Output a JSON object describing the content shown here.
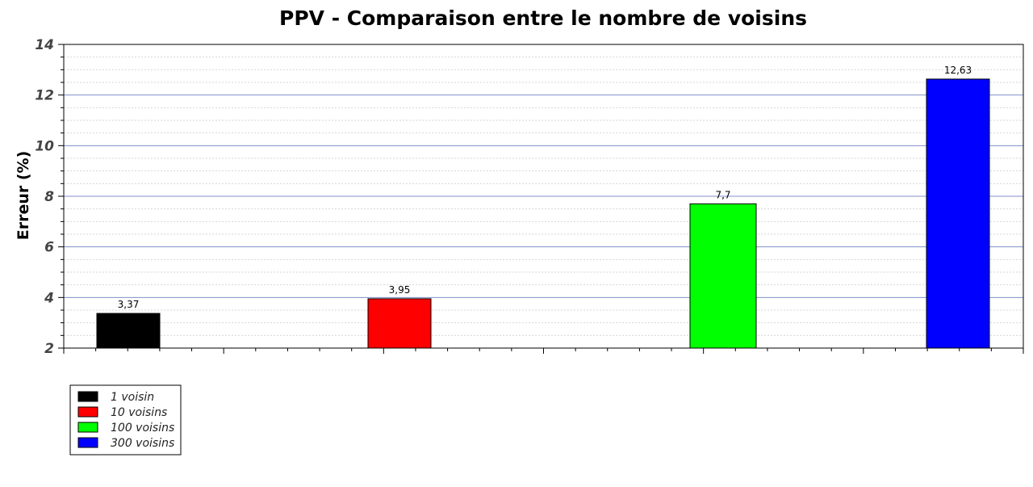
{
  "chart_data": {
    "type": "bar",
    "title": "PPV - Comparaison entre le nombre de voisins",
    "xlabel": "",
    "ylabel": "Erreur (%)",
    "ylim": [
      2,
      14
    ],
    "yticks": [
      "2",
      "4",
      "6",
      "8",
      "10",
      "12",
      "14"
    ],
    "grid": true,
    "legend_position": "bottom-left",
    "series": [
      {
        "name": "1 voisin",
        "value": 3.37,
        "label": "3,37",
        "color": "#000000"
      },
      {
        "name": "10 voisins",
        "value": 3.95,
        "label": "3,95",
        "color": "#ff0000"
      },
      {
        "name": "100 voisins",
        "value": 7.7,
        "label": "7,7",
        "color": "#00ff00"
      },
      {
        "name": "300 voisins",
        "value": 12.63,
        "label": "12,63",
        "color": "#0000ff"
      }
    ]
  }
}
